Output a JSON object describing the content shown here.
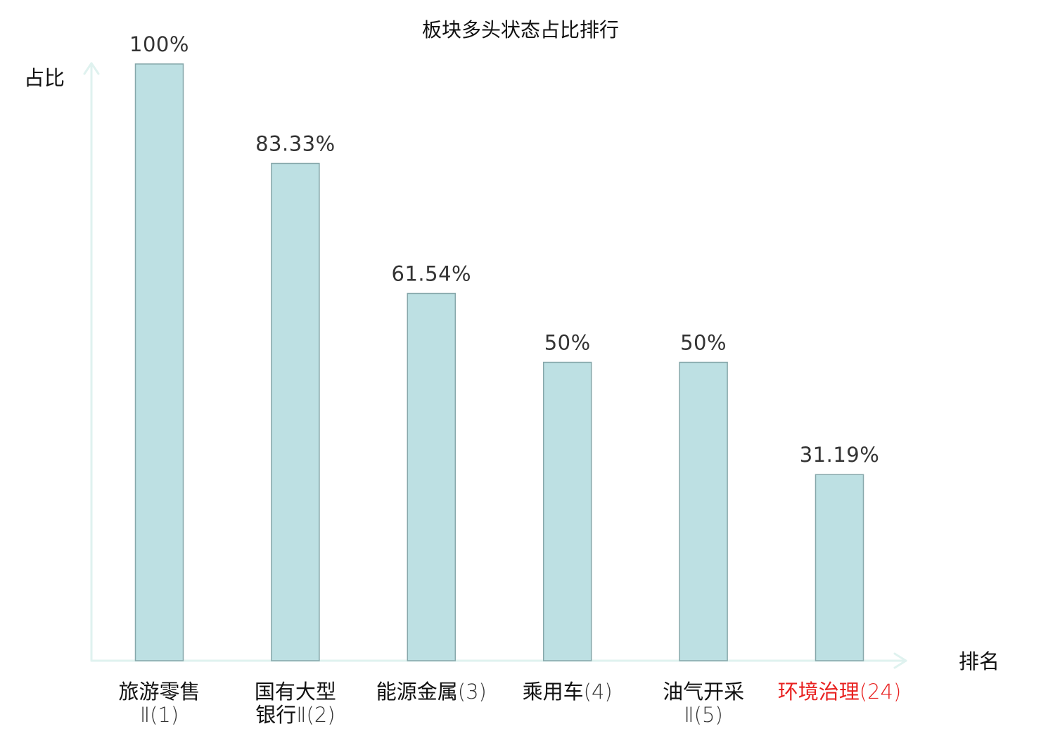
{
  "chart_data": {
    "type": "bar",
    "title": "板块多头状态占比排行",
    "xlabel": "排名",
    "ylabel": "占比",
    "ylim": [
      0,
      100
    ],
    "grid": false,
    "categories": [
      {
        "name_lines": [
          "旅游零售"
        ],
        "rank_lines": [
          "Ⅱ(1)"
        ],
        "highlight": false
      },
      {
        "name_lines": [
          "国有大型"
        ],
        "rank_lines": [
          "银行Ⅱ(2)"
        ],
        "highlight": false
      },
      {
        "name_lines": [
          "能源金属(3)"
        ],
        "rank_lines": [],
        "highlight": false
      },
      {
        "name_lines": [
          "乘用车(4)"
        ],
        "rank_lines": [],
        "highlight": false
      },
      {
        "name_lines": [
          "油气开采"
        ],
        "rank_lines": [
          "Ⅱ(5)"
        ],
        "highlight": false
      },
      {
        "name_lines": [
          "环境治理(24)"
        ],
        "rank_lines": [],
        "highlight": true
      }
    ],
    "values": [
      100,
      83.33,
      61.54,
      50,
      50,
      31.19
    ],
    "value_labels": [
      "100%",
      "83.33%",
      "61.54%",
      "50%",
      "50%",
      "31.19%"
    ],
    "colors": {
      "bar_fill": "#bde0e3",
      "bar_stroke": "#86a7aa",
      "axis": "#dff2ef",
      "highlight_text": "#e8201f"
    }
  }
}
